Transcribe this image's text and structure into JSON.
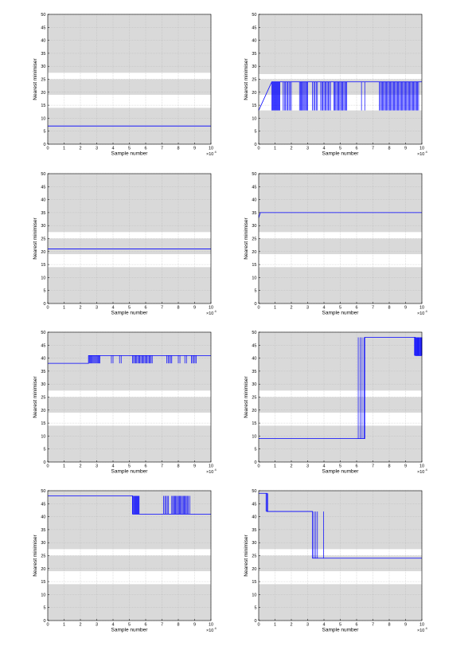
{
  "figure": {
    "common": {
      "xlabel": "Sample number",
      "ylabel": "Nearest minimiser",
      "x_multiplier_label": "×10",
      "x_multiplier_exponent": "4",
      "xlim": [
        0,
        10
      ],
      "ylim": [
        0,
        50
      ],
      "xticks": [
        0,
        1,
        2,
        3,
        4,
        5,
        6,
        7,
        8,
        9,
        10
      ],
      "yticks": [
        0,
        5,
        10,
        15,
        20,
        25,
        30,
        35,
        40,
        45,
        50
      ],
      "grid": true,
      "line_color": "#0000ff",
      "band_color": "#d9d9d9",
      "gap_color": "#ffffff",
      "background_bands": [
        [
          0,
          14
        ],
        [
          14.2,
          20
        ],
        [
          20.2,
          25
        ],
        [
          25.2,
          27.5
        ],
        [
          27.7,
          50
        ]
      ]
    }
  },
  "chart_data": [
    {
      "type": "line",
      "panel": "row1-left",
      "bands": [
        [
          0,
          14
        ],
        [
          19,
          25
        ],
        [
          27.5,
          50
        ]
      ],
      "steps": [
        [
          0,
          7
        ],
        [
          10,
          7
        ]
      ],
      "oscillations": []
    },
    {
      "type": "line",
      "panel": "row1-right",
      "bands": [
        [
          0,
          13
        ],
        [
          19,
          25
        ],
        [
          27,
          50
        ]
      ],
      "steps": [
        [
          0,
          13
        ],
        [
          0.8,
          24
        ],
        [
          10,
          24
        ]
      ],
      "oscillations": [
        {
          "x0": 0.8,
          "x1": 1.3,
          "low": 13,
          "high": 24,
          "count": 12
        },
        {
          "x0": 1.5,
          "x1": 2.0,
          "low": 13,
          "high": 24,
          "count": 8
        },
        {
          "x0": 2.5,
          "x1": 3.0,
          "low": 13,
          "high": 24,
          "count": 10
        },
        {
          "x0": 3.3,
          "x1": 3.6,
          "low": 13,
          "high": 24,
          "count": 5
        },
        {
          "x0": 3.8,
          "x1": 4.4,
          "low": 13,
          "high": 24,
          "count": 10
        },
        {
          "x0": 4.6,
          "x1": 5.4,
          "low": 13,
          "high": 24,
          "count": 14
        },
        {
          "x0": 6.3,
          "x1": 6.5,
          "low": 13,
          "high": 24,
          "count": 2
        },
        {
          "x0": 7.4,
          "x1": 9.8,
          "low": 13,
          "high": 24,
          "count": 40
        }
      ]
    },
    {
      "type": "line",
      "panel": "row2-left",
      "bands": [
        [
          0,
          14
        ],
        [
          19,
          25
        ],
        [
          27.5,
          50
        ]
      ],
      "steps": [
        [
          0,
          21
        ],
        [
          10,
          21
        ]
      ],
      "oscillations": []
    },
    {
      "type": "line",
      "panel": "row2-right",
      "bands": [
        [
          0,
          14
        ],
        [
          19,
          25
        ],
        [
          27.5,
          50
        ]
      ],
      "steps": [
        [
          0,
          33
        ],
        [
          0.1,
          35
        ],
        [
          10,
          35
        ]
      ],
      "oscillations": []
    },
    {
      "type": "line",
      "panel": "row3-left",
      "bands": [
        [
          0,
          14
        ],
        [
          19,
          25
        ],
        [
          27.5,
          50
        ]
      ],
      "steps": [
        [
          0,
          38
        ],
        [
          2.5,
          38
        ],
        [
          2.5,
          41
        ],
        [
          10,
          41
        ]
      ],
      "oscillations": [
        {
          "x0": 2.5,
          "x1": 3.2,
          "low": 38,
          "high": 41,
          "count": 14
        },
        {
          "x0": 3.9,
          "x1": 4.0,
          "low": 38,
          "high": 41,
          "count": 2
        },
        {
          "x0": 4.4,
          "x1": 4.5,
          "low": 38,
          "high": 41,
          "count": 2
        },
        {
          "x0": 5.2,
          "x1": 6.4,
          "low": 38,
          "high": 41,
          "count": 20
        },
        {
          "x0": 7.3,
          "x1": 7.6,
          "low": 38,
          "high": 41,
          "count": 5
        },
        {
          "x0": 8.0,
          "x1": 8.1,
          "low": 38,
          "high": 41,
          "count": 2
        },
        {
          "x0": 8.4,
          "x1": 8.5,
          "low": 38,
          "high": 41,
          "count": 2
        },
        {
          "x0": 8.8,
          "x1": 9.1,
          "low": 38,
          "high": 41,
          "count": 5
        }
      ]
    },
    {
      "type": "line",
      "panel": "row3-right",
      "bands": [
        [
          0,
          14
        ],
        [
          19,
          25
        ],
        [
          27.5,
          50
        ]
      ],
      "steps": [
        [
          0,
          9
        ],
        [
          6.5,
          9
        ],
        [
          6.5,
          48
        ],
        [
          9.6,
          48
        ],
        [
          9.6,
          41
        ],
        [
          10,
          41
        ]
      ],
      "oscillations": [
        {
          "x0": 6.1,
          "x1": 6.45,
          "low": 9,
          "high": 48,
          "count": 4
        },
        {
          "x0": 9.55,
          "x1": 10,
          "low": 41,
          "high": 48,
          "count": 12
        }
      ]
    },
    {
      "type": "line",
      "panel": "row4-left",
      "bands": [
        [
          0,
          14
        ],
        [
          19,
          25
        ],
        [
          27.5,
          50
        ]
      ],
      "steps": [
        [
          0,
          48
        ],
        [
          5.2,
          48
        ],
        [
          5.2,
          41
        ],
        [
          10,
          41
        ]
      ],
      "oscillations": [
        {
          "x0": 5.2,
          "x1": 5.6,
          "low": 41,
          "high": 48,
          "count": 10
        },
        {
          "x0": 7.1,
          "x1": 7.4,
          "low": 41,
          "high": 48,
          "count": 5
        },
        {
          "x0": 7.6,
          "x1": 8.6,
          "low": 41,
          "high": 48,
          "count": 18
        },
        {
          "x0": 8.6,
          "x1": 8.7,
          "low": 41,
          "high": 48,
          "count": 2
        }
      ]
    },
    {
      "type": "line",
      "panel": "row4-right",
      "bands": [
        [
          0,
          14
        ],
        [
          19,
          25
        ],
        [
          27.5,
          50
        ]
      ],
      "steps": [
        [
          0,
          49
        ],
        [
          0.5,
          49
        ],
        [
          0.5,
          42
        ],
        [
          3.3,
          42
        ],
        [
          3.3,
          24
        ],
        [
          10,
          24
        ]
      ],
      "oscillations": [
        {
          "x0": 0.45,
          "x1": 0.55,
          "low": 42,
          "high": 49,
          "count": 2
        },
        {
          "x0": 3.3,
          "x1": 3.6,
          "low": 24,
          "high": 42,
          "count": 4
        },
        {
          "x0": 3.95,
          "x1": 4.0,
          "low": 24,
          "high": 42,
          "count": 1
        }
      ]
    }
  ]
}
